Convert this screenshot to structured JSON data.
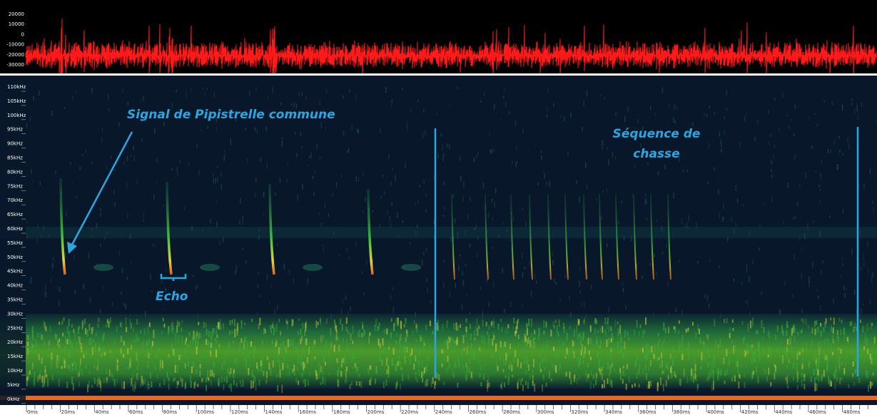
{
  "waveform": {
    "y_labels": [
      "20000",
      "10000",
      "0",
      "-10000",
      "-20000",
      "-30000"
    ]
  },
  "spectrogram": {
    "freq_labels": [
      "110kHz",
      "105kHz",
      "100kHz",
      "95kHz",
      "90kHz",
      "85kHz",
      "80kHz",
      "75kHz",
      "70kHz",
      "65kHz",
      "60kHz",
      "55kHz",
      "50kHz",
      "45kHz",
      "40kHz",
      "35kHz",
      "30kHz",
      "25kHz",
      "20kHz",
      "15kHz",
      "10kHz",
      "5kHz",
      "0kHz"
    ],
    "time_labels": [
      "0ms",
      "20ms",
      "40ms",
      "60ms",
      "80ms",
      "100ms",
      "120ms",
      "140ms",
      "160ms",
      "180ms",
      "200ms",
      "220ms",
      "240ms",
      "260ms",
      "280ms",
      "300ms",
      "320ms",
      "340ms",
      "360ms",
      "380ms",
      "400ms",
      "420ms",
      "440ms",
      "460ms",
      "480ms"
    ]
  },
  "annotations": {
    "signal": "Signal de Pipistrelle commune",
    "echo": "Echo",
    "sequence_line1": "Séquence de",
    "sequence_line2": "chasse"
  }
}
